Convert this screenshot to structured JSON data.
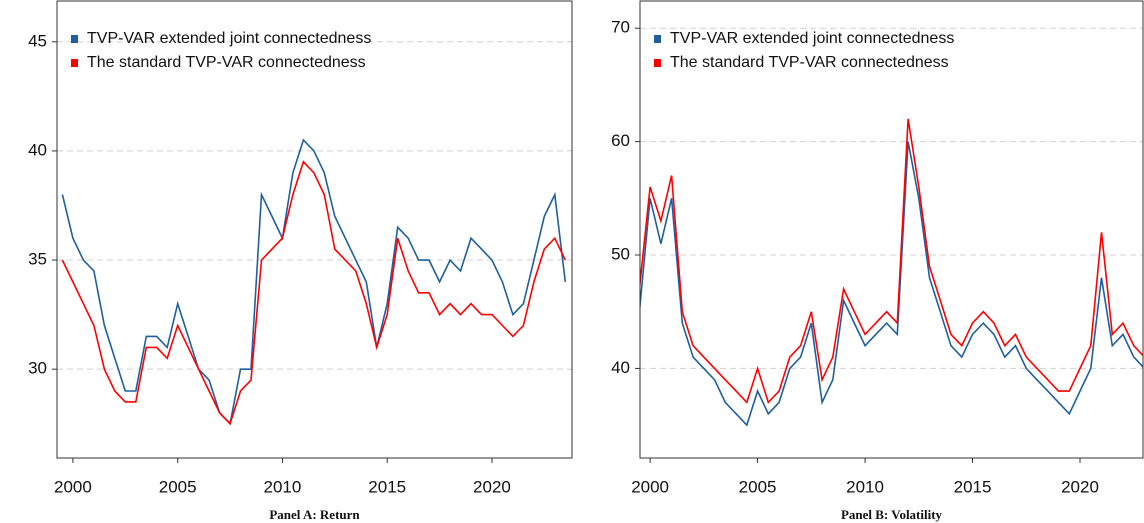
{
  "chart_data": [
    {
      "type": "line",
      "caption": "Panel A: Return",
      "x": [
        1999.5,
        2000,
        2000.5,
        2001,
        2001.5,
        2002,
        2002.5,
        2003,
        2003.5,
        2004,
        2004.5,
        2005,
        2005.5,
        2006,
        2006.5,
        2007,
        2007.5,
        2008,
        2008.5,
        2009,
        2009.5,
        2010,
        2010.5,
        2011,
        2011.5,
        2012,
        2012.5,
        2013,
        2013.5,
        2014,
        2014.5,
        2015,
        2015.5,
        2016,
        2016.5,
        2017,
        2017.5,
        2018,
        2018.5,
        2019,
        2019.5,
        2020,
        2020.5,
        2021,
        2021.5,
        2022,
        2022.5,
        2023,
        2023.5
      ],
      "series": [
        {
          "name": "TVP-VAR extended joint connectedness",
          "color": "#1f5f9e",
          "values": [
            38,
            36,
            35,
            34.5,
            32,
            30.5,
            29,
            29,
            31.5,
            31.5,
            31,
            33,
            31.5,
            30,
            29.5,
            28,
            27.5,
            30,
            30,
            38,
            37,
            36,
            39,
            40.5,
            40,
            39,
            37,
            36,
            35,
            34,
            31,
            33,
            36.5,
            36,
            35,
            35,
            34,
            35,
            34.5,
            36,
            35.5,
            35,
            34,
            32.5,
            33,
            35,
            37,
            38,
            34
          ]
        },
        {
          "name": "The standard TVP-VAR connectedness",
          "color": "#ff0000",
          "values": [
            35,
            34,
            33,
            32,
            30,
            29,
            28.5,
            28.5,
            31,
            31,
            30.5,
            32,
            31,
            30,
            29,
            28,
            27.5,
            29,
            29.5,
            35,
            35.5,
            36,
            38,
            39.5,
            39,
            38,
            35.5,
            35,
            34.5,
            33,
            31,
            32.5,
            36,
            34.5,
            33.5,
            33.5,
            32.5,
            33,
            32.5,
            33,
            32.5,
            32.5,
            32,
            31.5,
            32,
            34,
            35.5,
            36,
            35
          ]
        }
      ],
      "xlim": [
        1999.24,
        2023.82
      ],
      "xticks": [
        2000,
        2005,
        2010,
        2015,
        2020
      ],
      "ylim": [
        25.93,
        46.87
      ],
      "yticks": [
        30,
        35,
        40,
        45
      ],
      "grid": true,
      "legend": "top-left"
    },
    {
      "type": "line",
      "caption": "Panel B: Volatility",
      "x": [
        1999.5,
        2000,
        2000.5,
        2001,
        2001.5,
        2002,
        2002.5,
        2003,
        2003.5,
        2004,
        2004.5,
        2005,
        2005.5,
        2006,
        2006.5,
        2007,
        2007.5,
        2008,
        2008.5,
        2009,
        2009.5,
        2010,
        2010.5,
        2011,
        2011.5,
        2012,
        2012.5,
        2013,
        2013.5,
        2014,
        2014.5,
        2015,
        2015.5,
        2016,
        2016.5,
        2017,
        2017.5,
        2018,
        2018.5,
        2019,
        2019.5,
        2020,
        2020.5,
        2021,
        2021.5,
        2022,
        2022.5,
        2023,
        2023.5
      ],
      "series": [
        {
          "name": "TVP-VAR extended joint connectedness",
          "color": "#1f5f9e",
          "values": [
            45,
            55,
            51,
            55,
            44,
            41,
            40,
            39,
            37,
            36,
            35,
            38,
            36,
            37,
            40,
            41,
            44,
            37,
            39,
            46,
            44,
            42,
            43,
            44,
            43,
            60,
            55,
            48,
            45,
            42,
            41,
            43,
            44,
            43,
            41,
            42,
            40,
            39,
            38,
            37,
            36,
            38,
            40,
            48,
            42,
            43,
            41,
            40,
            38
          ]
        },
        {
          "name": "The standard TVP-VAR connectedness",
          "color": "#ff0000",
          "values": [
            47,
            56,
            53,
            57,
            45,
            42,
            41,
            40,
            39,
            38,
            37,
            40,
            37,
            38,
            41,
            42,
            45,
            39,
            41,
            47,
            45,
            43,
            44,
            45,
            44,
            62,
            56,
            49,
            46,
            43,
            42,
            44,
            45,
            44,
            42,
            43,
            41,
            40,
            39,
            38,
            38,
            40,
            42,
            52,
            43,
            44,
            42,
            41,
            40
          ]
        }
      ],
      "xlim": [
        1999.53,
        2022.93
      ],
      "xticks": [
        2000,
        2005,
        2010,
        2015,
        2020
      ],
      "ylim": [
        32.1,
        72.4
      ],
      "yticks": [
        40,
        50,
        60,
        70
      ],
      "grid": true,
      "legend": "top-left"
    }
  ]
}
